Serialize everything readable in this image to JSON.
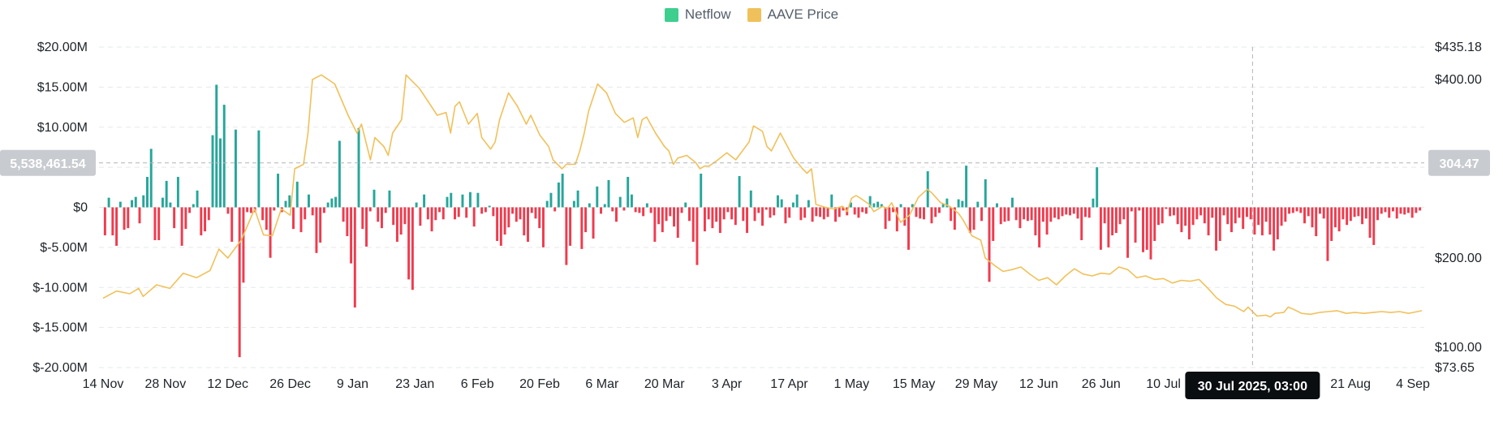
{
  "legend": [
    {
      "label": "Netflow",
      "color": "#3ecf8e"
    },
    {
      "label": "AAVE Price",
      "color": "#f0c15b"
    }
  ],
  "crosshair": {
    "date_label": "30 Jul 2025, 03:00",
    "left_value": "5,538,461.54",
    "right_value": "304.47",
    "date_index": 258,
    "left_level": 5538461.54,
    "right_level": 304.47
  },
  "colors": {
    "positive": "#26a69a",
    "negative": "#ef3b4e",
    "price": "#f0c15b",
    "grid": "#e6e8ea",
    "tag_bg": "#c8cbd0",
    "tooltip_bg": "#0b0e11"
  },
  "chart_data": {
    "type": "bar",
    "title": "",
    "xlabel": "",
    "ylabel": "",
    "x_tick_labels": [
      "14 Nov",
      "28 Nov",
      "12 Dec",
      "26 Dec",
      "9 Jan",
      "23 Jan",
      "6 Feb",
      "20 Feb",
      "6 Mar",
      "20 Mar",
      "3 Apr",
      "17 Apr",
      "1 May",
      "15 May",
      "29 May",
      "12 Jun",
      "26 Jun",
      "10 Jul",
      "",
      "21 Aug",
      "4 Sep"
    ],
    "x_tick_days": [
      0,
      14,
      28,
      42,
      56,
      70,
      84,
      98,
      112,
      126,
      140,
      154,
      168,
      182,
      196,
      210,
      224,
      238,
      254,
      280,
      294
    ],
    "left_axis": {
      "ylim": [
        -20000000,
        20000000
      ],
      "ticks": [
        20000000,
        15000000,
        10000000,
        5000000,
        0,
        -5000000,
        -10000000,
        -15000000,
        -20000000
      ],
      "tick_labels": [
        "$20.00M",
        "$15.00M",
        "$10.00M",
        "$5.00M",
        "$0",
        "$-5.00M",
        "$-10.00M",
        "$-15.00M",
        "$-20.00M"
      ]
    },
    "right_axis": {
      "ylim": [
        73.65,
        435.18
      ],
      "ticks": [
        435.18,
        400,
        200,
        100,
        73.65
      ],
      "tick_labels": [
        "$435.18",
        "$400.00",
        "$200.00",
        "$100.00",
        "$73.65"
      ]
    },
    "series": [
      {
        "name": "Netflow",
        "type": "bar",
        "unit": "USD",
        "values": [
          -3.5,
          1.2,
          -3.5,
          -4.8,
          0.7,
          -2.8,
          -2.6,
          0.9,
          1.3,
          -2.0,
          1.5,
          3.8,
          7.3,
          -4.1,
          -4.1,
          1.2,
          3.3,
          0.6,
          -2.6,
          3.8,
          -4.8,
          -2.7,
          -0.7,
          0.4,
          2.1,
          -3.5,
          -3.0,
          -1.6,
          9.0,
          15.3,
          8.6,
          12.8,
          -0.8,
          -4.3,
          9.7,
          -18.7,
          -9.4,
          -0.6,
          -0.7,
          -0.6,
          9.6,
          -1.6,
          -2.8,
          -6.3,
          -0.4,
          4.2,
          -0.6,
          0.8,
          1.5,
          -2.7,
          3.2,
          -3.1,
          -1.5,
          1.6,
          -1.0,
          -5.7,
          -4.4,
          -0.7,
          0.6,
          1.1,
          1.3,
          8.3,
          -1.8,
          -3.6,
          -7.0,
          -12.5,
          9.9,
          -2.7,
          -4.9,
          -0.5,
          2.2,
          -1.8,
          -2.6,
          -0.7,
          2.1,
          -2.2,
          -4.3,
          -3.4,
          -2.1,
          -9.0,
          -10.3,
          0.6,
          -2.3,
          1.6,
          -1.5,
          -3.0,
          -1.6,
          -0.6,
          -1.5,
          1.3,
          1.8,
          -1.5,
          -1.2,
          1.6,
          -1.3,
          1.9,
          -2.4,
          1.8,
          -0.8,
          -0.6,
          0.2,
          -1.1,
          -4.2,
          -4.8,
          -3.4,
          -2.5,
          -0.8,
          -1.8,
          -1.5,
          -3.5,
          -4.3,
          -0.7,
          -1.4,
          -2.6,
          -5.0,
          0.8,
          1.8,
          -0.5,
          3.1,
          4.2,
          -7.2,
          -4.8,
          0.8,
          2.1,
          -5.2,
          -3.1,
          0.5,
          -3.9,
          2.6,
          -0.8,
          0.4,
          3.4,
          -0.5,
          -1.8,
          1.3,
          -0.4,
          3.8,
          1.6,
          -0.6,
          -0.7,
          -1.1,
          0.5,
          -0.7,
          -4.3,
          -2.1,
          -3.1,
          -1.7,
          -1.1,
          -2.4,
          -3.8,
          -0.7,
          0.6,
          -1.7,
          -4.3,
          -7.2,
          4.2,
          -3.0,
          -1.5,
          -2.6,
          -1.8,
          -3.2,
          -1.5,
          -0.6,
          -1.5,
          -2.2,
          3.9,
          -1.7,
          -3.2,
          2.1,
          -1.7,
          -0.7,
          -2.3,
          -0.3,
          -1.3,
          -1.0,
          1.5,
          1.0,
          -2.0,
          -1.3,
          0.6,
          1.6,
          -1.6,
          -1.3,
          0.9,
          -1.8,
          -1.1,
          -1.2,
          -1.5,
          -1.2,
          1.6,
          -1.8,
          -1.2,
          -0.4,
          -1.0,
          0.6,
          -0.9,
          -1.3,
          -0.6,
          -0.8,
          1.4,
          0.5,
          0.7,
          0.4,
          -2.7,
          -1.7,
          -0.6,
          -3.0,
          0.4,
          -2.3,
          -5.3,
          0.4,
          -1.2,
          -1.4,
          -1.5,
          4.5,
          -2.0,
          -1.2,
          -0.7,
          0.5,
          1.1,
          -1.7,
          -2.8,
          1.0,
          0.8,
          5.2,
          -3.2,
          -2.8,
          0.7,
          -1.7,
          3.5,
          -9.3,
          -4.2,
          0.5,
          -2.1,
          -1.8,
          -1.7,
          1.2,
          -1.6,
          -2.6,
          -1.5,
          -1.7,
          -1.6,
          -3.5,
          -5.0,
          -1.8,
          -3.4,
          -1.8,
          -1.3,
          -1.5,
          -1.1,
          -0.9,
          -1.0,
          -0.8,
          -1.4,
          -4.1,
          -1.2,
          -1.3,
          1.1,
          5.0,
          -5.3,
          -2.0,
          -5.0,
          -3.5,
          -3.2,
          -2.1,
          -1.5,
          -6.3,
          -0.5,
          -4.4,
          -0.4,
          -5.6,
          -5.3,
          -6.5,
          -4.2,
          -2.2,
          -2.0,
          -0.2,
          -1.1,
          -1.0,
          -2.1,
          -3.1,
          -2.3,
          -4.0,
          -2.2,
          -1.5,
          -1.0,
          -2.0,
          -3.5,
          -1.3,
          -5.4,
          -4.2,
          -1.0,
          -2.1,
          -3.1,
          -2.0,
          -1.3,
          -2.7,
          -1.2,
          -1.5,
          -3.4,
          -2.2,
          -3.5,
          -1.8,
          -3.4,
          -5.4,
          -4.0,
          -2.3,
          -1.8,
          -0.8,
          -0.7,
          -0.5,
          -0.7,
          -2.0,
          -1.1,
          -2.5,
          -3.6,
          -0.8,
          -1.4,
          -6.7,
          -4.2,
          -2.5,
          -3.0,
          -1.5,
          -2.2,
          -1.7,
          -1.2,
          -1.1,
          -2.1,
          -1.4,
          -3.8,
          -4.7,
          -1.6,
          -0.8,
          -0.6,
          -1.3,
          -0.5,
          -1.4,
          -0.8,
          -0.9,
          -0.7,
          -1.3,
          -0.7,
          -0.4
        ]
      },
      {
        "name": "AAVE Price",
        "type": "line",
        "unit": "USD",
        "points": [
          [
            0,
            155
          ],
          [
            3,
            163
          ],
          [
            6,
            160
          ],
          [
            8,
            166
          ],
          [
            9,
            157
          ],
          [
            12,
            170
          ],
          [
            15,
            166
          ],
          [
            18,
            183
          ],
          [
            21,
            178
          ],
          [
            24,
            186
          ],
          [
            26,
            210
          ],
          [
            28,
            200
          ],
          [
            31,
            220
          ],
          [
            34,
            255
          ],
          [
            36,
            226
          ],
          [
            38,
            225
          ],
          [
            40,
            255
          ],
          [
            42,
            248
          ],
          [
            43,
            300
          ],
          [
            45,
            305
          ],
          [
            46,
            340
          ],
          [
            47,
            400
          ],
          [
            49,
            405
          ],
          [
            52,
            395
          ],
          [
            55,
            360
          ],
          [
            57,
            340
          ],
          [
            58,
            350
          ],
          [
            60,
            310
          ],
          [
            61,
            335
          ],
          [
            63,
            325
          ],
          [
            64,
            315
          ],
          [
            65,
            340
          ],
          [
            67,
            355
          ],
          [
            68,
            405
          ],
          [
            71,
            390
          ],
          [
            73,
            375
          ],
          [
            75,
            360
          ],
          [
            77,
            363
          ],
          [
            78,
            340
          ],
          [
            79,
            370
          ],
          [
            80,
            375
          ],
          [
            82,
            350
          ],
          [
            84,
            362
          ],
          [
            85,
            335
          ],
          [
            87,
            322
          ],
          [
            88,
            330
          ],
          [
            89,
            355
          ],
          [
            91,
            385
          ],
          [
            93,
            370
          ],
          [
            95,
            350
          ],
          [
            96,
            360
          ],
          [
            98,
            338
          ],
          [
            100,
            325
          ],
          [
            101,
            310
          ],
          [
            103,
            300
          ],
          [
            104,
            305
          ],
          [
            106,
            305
          ],
          [
            107,
            320
          ],
          [
            108,
            340
          ],
          [
            109,
            365
          ],
          [
            111,
            395
          ],
          [
            113,
            385
          ],
          [
            115,
            362
          ],
          [
            117,
            352
          ],
          [
            119,
            357
          ],
          [
            120,
            335
          ],
          [
            121,
            355
          ],
          [
            122,
            358
          ],
          [
            124,
            340
          ],
          [
            126,
            325
          ],
          [
            127,
            320
          ],
          [
            128,
            305
          ],
          [
            129,
            312
          ],
          [
            131,
            315
          ],
          [
            133,
            307
          ],
          [
            134,
            300
          ],
          [
            135,
            303
          ],
          [
            136,
            303
          ],
          [
            138,
            310
          ],
          [
            140,
            318
          ],
          [
            142,
            310
          ],
          [
            145,
            330
          ],
          [
            146,
            348
          ],
          [
            148,
            342
          ],
          [
            149,
            325
          ],
          [
            150,
            320
          ],
          [
            152,
            340
          ],
          [
            155,
            312
          ],
          [
            157,
            300
          ],
          [
            158,
            295
          ],
          [
            159,
            300
          ],
          [
            160,
            260
          ],
          [
            162,
            257
          ],
          [
            164,
            255
          ],
          [
            166,
            258
          ],
          [
            167,
            252
          ],
          [
            168,
            267
          ],
          [
            169,
            270
          ],
          [
            170,
            267
          ],
          [
            172,
            260
          ],
          [
            173,
            252
          ],
          [
            175,
            258
          ],
          [
            176,
            255
          ],
          [
            177,
            262
          ],
          [
            179,
            240
          ],
          [
            181,
            248
          ],
          [
            183,
            268
          ],
          [
            185,
            277
          ],
          [
            186,
            273
          ],
          [
            188,
            262
          ],
          [
            190,
            258
          ],
          [
            192,
            250
          ],
          [
            193,
            243
          ],
          [
            195,
            225
          ],
          [
            197,
            220
          ],
          [
            198,
            200
          ],
          [
            200,
            192
          ],
          [
            202,
            185
          ],
          [
            204,
            187
          ],
          [
            206,
            190
          ],
          [
            208,
            182
          ],
          [
            210,
            175
          ],
          [
            212,
            178
          ],
          [
            214,
            170
          ],
          [
            216,
            180
          ],
          [
            218,
            188
          ],
          [
            220,
            182
          ],
          [
            222,
            180
          ],
          [
            224,
            183
          ],
          [
            226,
            182
          ],
          [
            228,
            190
          ],
          [
            230,
            187
          ],
          [
            232,
            178
          ],
          [
            234,
            180
          ],
          [
            236,
            176
          ],
          [
            238,
            177
          ],
          [
            240,
            172
          ],
          [
            242,
            175
          ],
          [
            244,
            174
          ],
          [
            246,
            176
          ],
          [
            248,
            166
          ],
          [
            250,
            155
          ],
          [
            252,
            148
          ],
          [
            254,
            146
          ],
          [
            256,
            140
          ],
          [
            257,
            145
          ],
          [
            259,
            135
          ],
          [
            261,
            136
          ],
          [
            262,
            134
          ],
          [
            263,
            138
          ],
          [
            265,
            139
          ],
          [
            266,
            145
          ],
          [
            267,
            143
          ],
          [
            269,
            138
          ],
          [
            271,
            137
          ],
          [
            273,
            139
          ],
          [
            275,
            140
          ],
          [
            277,
            141
          ],
          [
            279,
            138
          ],
          [
            281,
            139
          ],
          [
            283,
            138
          ],
          [
            285,
            139
          ],
          [
            287,
            140
          ],
          [
            289,
            139
          ],
          [
            291,
            140
          ],
          [
            293,
            138
          ],
          [
            295,
            140
          ],
          [
            296,
            141
          ]
        ]
      }
    ]
  }
}
